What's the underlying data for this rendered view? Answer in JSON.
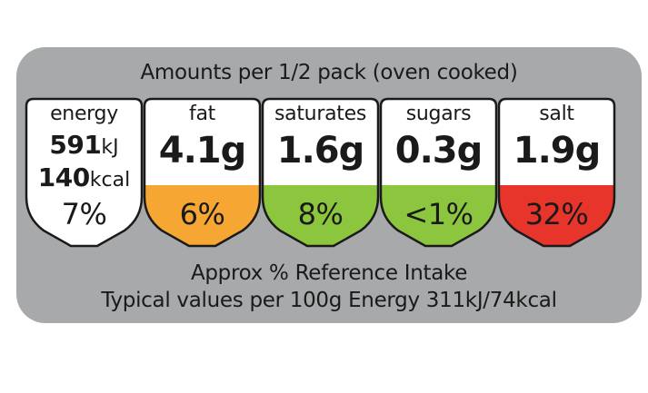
{
  "header": "Amounts per 1/2 pack (oven cooked)",
  "energy": {
    "label": "energy",
    "kj_value": "591",
    "kj_unit": "kJ",
    "kcal_value": "140",
    "kcal_unit": "kcal",
    "percent": "7%",
    "color": "#ffffff"
  },
  "fat": {
    "label": "fat",
    "amount": "4.1g",
    "percent": "6%",
    "color": "#f5a633"
  },
  "saturates": {
    "label": "saturates",
    "amount": "1.6g",
    "percent": "8%",
    "color": "#8cc63f"
  },
  "sugars": {
    "label": "sugars",
    "amount": "0.3g",
    "percent": "<1%",
    "color": "#8cc63f"
  },
  "salt": {
    "label": "salt",
    "amount": "1.9g",
    "percent": "32%",
    "color": "#e8352b"
  },
  "footer": {
    "line1": "Approx % Reference Intake",
    "line2": "Typical values per 100g Energy 311kJ/74kcal"
  }
}
